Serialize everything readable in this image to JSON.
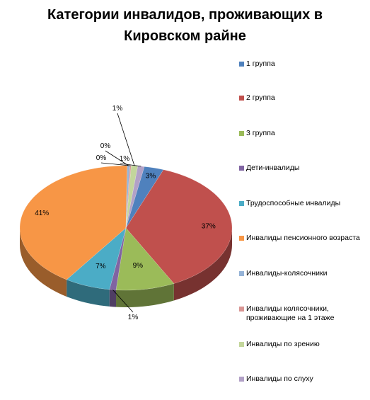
{
  "chart_data": {
    "type": "pie",
    "title": "Категории инвалидов, проживающих в Кировском райне",
    "three_d": true,
    "legend_position": "right",
    "slices": [
      {
        "name": "1 группа",
        "value": 3,
        "label": "3%",
        "color": "#4f81bd"
      },
      {
        "name": "2 группа",
        "value": 37,
        "label": "37%",
        "color": "#c0504d"
      },
      {
        "name": "3 группа",
        "value": 9,
        "label": "9%",
        "color": "#9bbb59"
      },
      {
        "name": "Дети-инвалиды",
        "value": 1,
        "label": "1%",
        "color": "#8064a2"
      },
      {
        "name": "Трудоспособные инвалиды",
        "value": 7,
        "label": "7%",
        "color": "#4bacc6"
      },
      {
        "name": "Инвалиды пенсионного возраста",
        "value": 41,
        "label": "41%",
        "color": "#f79646"
      },
      {
        "name": "Инвалиды-колясочники",
        "value": 0.4,
        "label": "0%",
        "color": "#95b3d7"
      },
      {
        "name": "Инвалиды колясочники, проживающие на 1 этаже",
        "value": 0.2,
        "label": "0%",
        "color": "#d99694"
      },
      {
        "name": "Инвалиды  по зрению",
        "value": 1,
        "label": "1%",
        "color": "#c3d69b"
      },
      {
        "name": "Инвалиды по слуху",
        "value": 1,
        "label": "1%",
        "color": "#b2a1c7"
      }
    ]
  }
}
